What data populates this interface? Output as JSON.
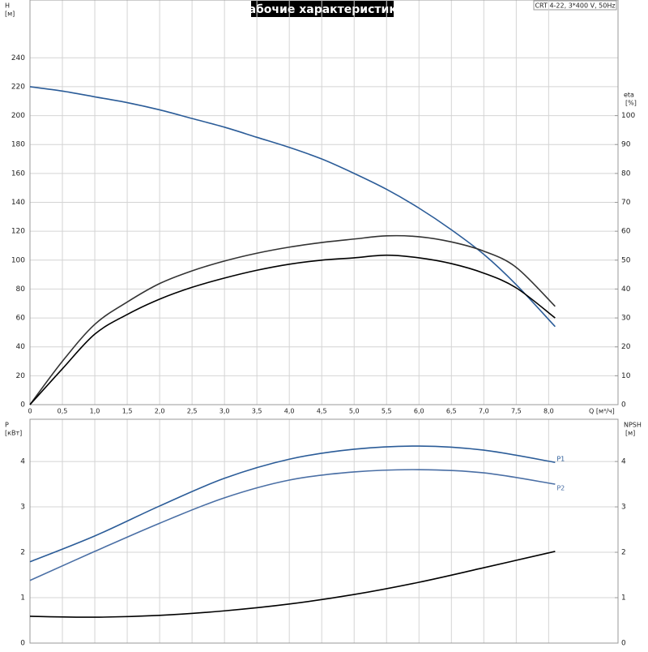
{
  "chart_data": [
    {
      "type": "line",
      "title": "Рабочие характеристики",
      "annotations": [
        "CRT 4-22, 3*400 V, 50Hz"
      ],
      "xlabel": "Q [м³/ч]",
      "ylabel": [
        "H",
        "[м]"
      ],
      "y2label": [
        "eta",
        "[%]"
      ],
      "x": [
        0,
        0.5,
        1,
        1.5,
        2,
        2.5,
        3,
        3.5,
        4,
        4.5,
        5,
        5.5,
        6,
        6.5,
        7,
        7.5,
        8.1
      ],
      "series": [
        {
          "color": "#2b5c98",
          "values": [
            220,
            217,
            213,
            209,
            204,
            198,
            192,
            185,
            178,
            170,
            160,
            149,
            136,
            121,
            104,
            83,
            54
          ]
        },
        {
          "color": "#333333",
          "axis": "y2",
          "values": [
            0,
            15,
            27.8,
            35.5,
            41.9,
            46.3,
            49.7,
            52.4,
            54.5,
            56.1,
            57.3,
            58.4,
            58.1,
            56.3,
            53.1,
            47.5,
            34
          ]
        },
        {
          "color": "#000000",
          "axis": "y2",
          "values": [
            0,
            12.4,
            24.4,
            31.2,
            36.5,
            40.6,
            43.8,
            46.5,
            48.6,
            50,
            50.8,
            51.7,
            50.8,
            48.8,
            45.5,
            40.4,
            30
          ]
        }
      ],
      "xlim": [
        0,
        9.07
      ],
      "xticks": [
        0,
        {
          "value": 0.5,
          "label": "0,5"
        },
        {
          "value": 1,
          "label": "1,0"
        },
        {
          "value": 1.5,
          "label": "1,5"
        },
        {
          "value": 2,
          "label": "2,0"
        },
        {
          "value": 2.5,
          "label": "2,5"
        },
        {
          "value": 3,
          "label": "3,0"
        },
        {
          "value": 3.5,
          "label": "3,5"
        },
        {
          "value": 4,
          "label": "4,0"
        },
        {
          "value": 4.5,
          "label": "4,5"
        },
        {
          "value": 5,
          "label": "5,0"
        },
        {
          "value": 5.5,
          "label": "5,5"
        },
        {
          "value": 6,
          "label": "6,0"
        },
        {
          "value": 6.5,
          "label": "6,5"
        },
        {
          "value": 7,
          "label": "7,0"
        },
        {
          "value": 7.5,
          "label": "7,5"
        },
        {
          "value": 8,
          "label": "8,0"
        }
      ],
      "ylim": [
        0,
        280
      ],
      "yticks": [
        0,
        20,
        40,
        60,
        80,
        100,
        120,
        140,
        160,
        180,
        200,
        220,
        240
      ],
      "y2lim": [
        0,
        140
      ],
      "y2ticks": [
        0,
        10,
        20,
        30,
        40,
        50,
        60,
        70,
        80,
        90,
        100
      ],
      "grid": true
    },
    {
      "type": "line",
      "ylabel": [
        "P",
        "[кВт]"
      ],
      "y2label": [
        "NPSH",
        "[м]"
      ],
      "x": [
        0,
        1,
        2,
        3,
        4,
        5,
        6,
        7,
        8.1
      ],
      "series": [
        {
          "name": "P1",
          "color": "#2b5c98",
          "values": [
            1.79,
            2.36,
            3.02,
            3.63,
            4.05,
            4.27,
            4.34,
            4.25,
            3.98
          ]
        },
        {
          "name": "P2",
          "color": "#4a6fa5",
          "values": [
            1.38,
            2.02,
            2.64,
            3.2,
            3.59,
            3.77,
            3.82,
            3.75,
            3.5
          ]
        },
        {
          "color": "#000000",
          "axis": "y2",
          "values": [
            0.59,
            0.57,
            0.61,
            0.71,
            0.86,
            1.07,
            1.34,
            1.66,
            2.02
          ]
        }
      ],
      "xlim": [
        0,
        9.07
      ],
      "ylim": [
        0,
        4.93
      ],
      "yticks": [
        0,
        1,
        2,
        3,
        4
      ],
      "y2lim": [
        0,
        4.93
      ],
      "y2ticks": [
        0,
        1,
        2,
        3,
        4
      ],
      "grid": true
    }
  ]
}
